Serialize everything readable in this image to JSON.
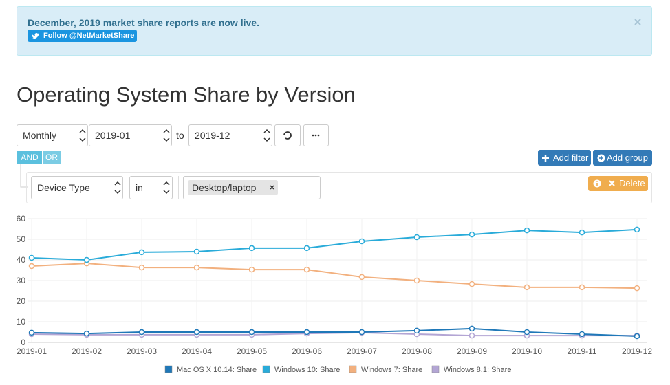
{
  "alert": {
    "message": "December, 2019 market share reports are now live.",
    "follow_button": "Follow @NetMarketShare"
  },
  "page_title": "Operating System Share by Version",
  "controls": {
    "period": "Monthly",
    "from": "2019-01",
    "to_label": "to",
    "to": "2019-12"
  },
  "logic": {
    "and": "AND",
    "or": "OR"
  },
  "buttons": {
    "add_filter": "Add filter",
    "add_group": "Add group",
    "delete": "Delete"
  },
  "filter": {
    "field": "Device Type",
    "operator": "in",
    "value": "Desktop/laptop"
  },
  "chart_data": {
    "type": "line",
    "categories": [
      "2019-01",
      "2019-02",
      "2019-03",
      "2019-04",
      "2019-05",
      "2019-06",
      "2019-07",
      "2019-08",
      "2019-09",
      "2019-10",
      "2019-11",
      "2019-12"
    ],
    "series": [
      {
        "name": "Mac OS X 10.14: Share",
        "color": "#1f78b8",
        "values": [
          4.7,
          4.3,
          5,
          5,
          5,
          5,
          5,
          5.7,
          6.7,
          5,
          4,
          3
        ]
      },
      {
        "name": "Windows 10: Share",
        "color": "#29abd9",
        "values": [
          41,
          40,
          43.7,
          44,
          45.7,
          45.7,
          49,
          51,
          52.3,
          54.3,
          53.3,
          54.7
        ]
      },
      {
        "name": "Windows 7: Share",
        "color": "#f2b07e",
        "values": [
          37,
          38.3,
          36.3,
          36.3,
          35.3,
          35.3,
          31.7,
          30,
          28.3,
          26.7,
          26.7,
          26.3
        ]
      },
      {
        "name": "Windows 8.1: Share",
        "color": "#b3a5d4",
        "values": [
          4,
          3.7,
          3.7,
          3.7,
          3.7,
          4.3,
          4.7,
          4,
          3.3,
          3.3,
          3.3,
          3.3
        ]
      }
    ],
    "ylim": [
      0,
      60
    ],
    "yticks": [
      0,
      10,
      20,
      30,
      40,
      50,
      60
    ],
    "grid": true
  }
}
